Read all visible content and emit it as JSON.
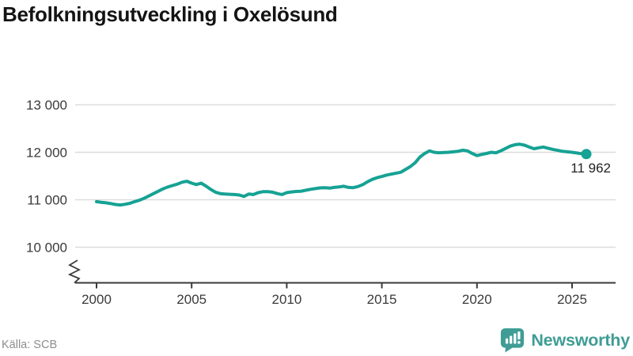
{
  "title": "Befolkningsutveckling i Oxelösund",
  "source": "Källa: SCB",
  "brand": {
    "name": "Newsworthy",
    "color": "#3f9d95"
  },
  "colors": {
    "line": "#16a294",
    "grid": "#dcdcdc",
    "axis": "#3a3a3a",
    "tick_text": "#3a3a3a",
    "annotation_text": "#222222",
    "title_text": "#141414",
    "muted_text": "#8d8d8d"
  },
  "chart_data": {
    "type": "line",
    "title": "Befolkningsutveckling i Oxelösund",
    "xlabel": "",
    "ylabel": "",
    "x_ticks": [
      2000,
      2005,
      2010,
      2015,
      2020,
      2025
    ],
    "x_tick_labels": [
      "2000",
      "2005",
      "2010",
      "2015",
      "2020",
      "2025"
    ],
    "y_ticks": [
      10000,
      11000,
      12000,
      13000
    ],
    "y_tick_labels": [
      "10 000",
      "11 000",
      "12 000",
      "13 000"
    ],
    "ylim": [
      10000,
      13000
    ],
    "xlim": [
      1998.9,
      2027.3
    ],
    "grid": "horizontal",
    "legend": "none",
    "axis_break": true,
    "frequency": "quarterly",
    "series": [
      {
        "name": "Befolkning i Oxelösund",
        "x_start": 2000.0,
        "x_step": 0.25,
        "values": [
          10960,
          10945,
          10935,
          10920,
          10900,
          10890,
          10905,
          10925,
          10960,
          10990,
          11030,
          11080,
          11130,
          11180,
          11230,
          11270,
          11300,
          11330,
          11370,
          11390,
          11350,
          11320,
          11350,
          11290,
          11220,
          11160,
          11130,
          11120,
          11115,
          11110,
          11100,
          11070,
          11120,
          11110,
          11150,
          11170,
          11170,
          11160,
          11130,
          11110,
          11150,
          11165,
          11175,
          11180,
          11200,
          11220,
          11235,
          11250,
          11255,
          11245,
          11260,
          11270,
          11285,
          11260,
          11255,
          11280,
          11320,
          11380,
          11430,
          11465,
          11490,
          11520,
          11540,
          11560,
          11580,
          11640,
          11700,
          11780,
          11900,
          11975,
          12030,
          12000,
          11990,
          11995,
          12000,
          12010,
          12020,
          12045,
          12030,
          11975,
          11930,
          11955,
          11975,
          12000,
          11990,
          12030,
          12080,
          12130,
          12160,
          12170,
          12150,
          12110,
          12075,
          12095,
          12110,
          12085,
          12060,
          12040,
          12020,
          12010,
          12000,
          11985,
          11970,
          11962
        ]
      }
    ],
    "last_point": {
      "x": 2025.75,
      "value": 11962,
      "label": "11 962"
    }
  }
}
